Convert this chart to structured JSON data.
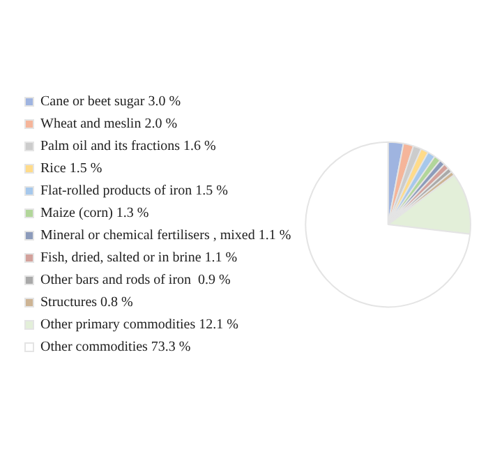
{
  "chart_data": {
    "type": "pie",
    "legend": "left",
    "categories": [
      "Cane or beet sugar 3.0 %",
      "Wheat and meslin 2.0 %",
      "Palm oil and its fractions 1.6 %",
      "Rice 1.5 %",
      "Flat-rolled products of iron 1.5 %",
      "Maize (corn) 1.3 %",
      "Mineral or chemical fertilisers , mixed 1.1 %",
      "Fish, dried, salted or in brine 1.1 %",
      "Other bars and rods of iron  0.9 %",
      "Structures 0.8 %",
      "Other primary commodities 12.1 %",
      "Other commodities 73.3 %"
    ],
    "values": [
      3.0,
      2.0,
      1.6,
      1.5,
      1.5,
      1.3,
      1.1,
      1.1,
      0.9,
      0.8,
      12.1,
      73.3
    ],
    "colors": [
      "#9fb4e0",
      "#f5b59a",
      "#cccccc",
      "#ffdb8a",
      "#a6c8ec",
      "#b2d69a",
      "#8c9bbb",
      "#d3a19b",
      "#a9a9a9",
      "#cdb494",
      "#e3efd9",
      "#ffffff"
    ]
  }
}
